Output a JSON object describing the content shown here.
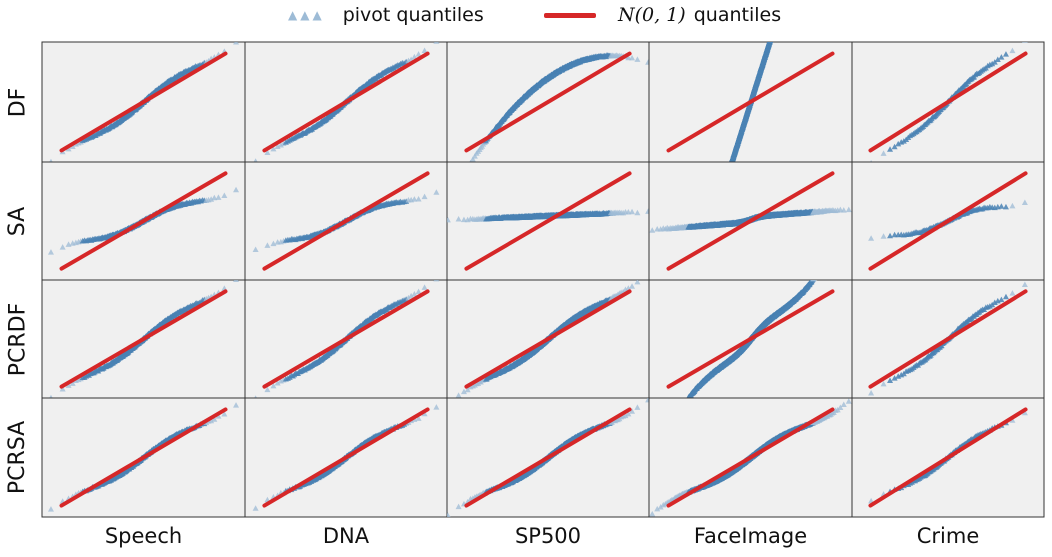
{
  "legend": {
    "pivot_label": "pivot quantiles",
    "normal_label_prefix": "N(0, 1)",
    "normal_label_suffix": "quantiles"
  },
  "colors": {
    "pivot": "#4a82b4",
    "pivot_light": "#9dbbd6",
    "reference_line": "#d62728",
    "panel_bg": "#f0f0f0",
    "panel_border": "#333333"
  },
  "rows": [
    "DF",
    "SA",
    "PCRDF",
    "PCRSA"
  ],
  "columns": [
    "Speech",
    "DNA",
    "SP500",
    "FaceImage",
    "Crime"
  ],
  "chart_data": {
    "type": "scatter",
    "description_kind": "qq-plot grid",
    "reference": "N(0, 1) quantiles",
    "axis_ranges": {
      "x": [
        -2.6,
        2.6
      ],
      "y": [
        -2.6,
        2.6
      ]
    },
    "grid": false,
    "legend_position": "top-center",
    "panels": [
      {
        "row": "DF",
        "col": "Speech",
        "n": 260,
        "shape": "linear",
        "slope": 1.13,
        "bend": 0,
        "density": 0.8
      },
      {
        "row": "DF",
        "col": "DNA",
        "n": 220,
        "shape": "linear",
        "slope": 1.17,
        "bend": 0,
        "density": 0.8
      },
      {
        "row": "DF",
        "col": "SP500",
        "n": 600,
        "shape": "concave",
        "slope": 1.15,
        "bend": 0.35,
        "offset": 1.05,
        "density": 1
      },
      {
        "row": "DF",
        "col": "FaceImage",
        "n": 1400,
        "shape": "steep",
        "slope": 5.0,
        "bend": 0,
        "density": 1
      },
      {
        "row": "DF",
        "col": "Crime",
        "n": 90,
        "shape": "linear",
        "slope": 1.35,
        "bend": 0,
        "density": 0.7
      },
      {
        "row": "SA",
        "col": "Speech",
        "n": 260,
        "shape": "linear",
        "slope": 0.62,
        "bend": 0,
        "density": 0.8
      },
      {
        "row": "SA",
        "col": "DNA",
        "n": 220,
        "shape": "linear",
        "slope": 0.6,
        "bend": 0,
        "density": 0.8
      },
      {
        "row": "SA",
        "col": "SP500",
        "n": 600,
        "shape": "flat",
        "slope": 0.07,
        "offset": 0.22,
        "density": 1
      },
      {
        "row": "SA",
        "col": "FaceImage",
        "n": 1400,
        "shape": "flat-step",
        "slope": 0.13,
        "offset": 0.06,
        "density": 1
      },
      {
        "row": "SA",
        "col": "Crime",
        "n": 90,
        "shape": "linear",
        "slope": 0.45,
        "bend": 0,
        "density": 0.7
      },
      {
        "row": "PCRDF",
        "col": "Speech",
        "n": 260,
        "shape": "linear",
        "slope": 1.14,
        "bend": 0,
        "density": 0.8
      },
      {
        "row": "PCRDF",
        "col": "DNA",
        "n": 220,
        "shape": "linear",
        "slope": 1.18,
        "bend": 0,
        "density": 0.8
      },
      {
        "row": "PCRDF",
        "col": "SP500",
        "n": 600,
        "shape": "linear",
        "slope": 1.15,
        "bend": 0,
        "density": 1
      },
      {
        "row": "PCRDF",
        "col": "FaceImage",
        "n": 1400,
        "shape": "sshape",
        "slope": 0.75,
        "bend": 0.55,
        "density": 1
      },
      {
        "row": "PCRDF",
        "col": "Crime",
        "n": 90,
        "shape": "linear",
        "slope": 1.22,
        "bend": 0,
        "density": 0.7
      },
      {
        "row": "PCRSA",
        "col": "Speech",
        "n": 260,
        "shape": "linear",
        "slope": 1.0,
        "bend": 0,
        "density": 0.8
      },
      {
        "row": "PCRSA",
        "col": "DNA",
        "n": 220,
        "shape": "linear",
        "slope": 1.0,
        "bend": 0,
        "density": 0.8
      },
      {
        "row": "PCRSA",
        "col": "SP500",
        "n": 600,
        "shape": "linear",
        "slope": 1.0,
        "bend": 0,
        "density": 1
      },
      {
        "row": "PCRSA",
        "col": "FaceImage",
        "n": 1400,
        "shape": "linear",
        "slope": 1.0,
        "bend": 0,
        "density": 1
      },
      {
        "row": "PCRSA",
        "col": "Crime",
        "n": 90,
        "shape": "linear",
        "slope": 1.0,
        "bend": 0,
        "density": 0.7
      }
    ]
  }
}
